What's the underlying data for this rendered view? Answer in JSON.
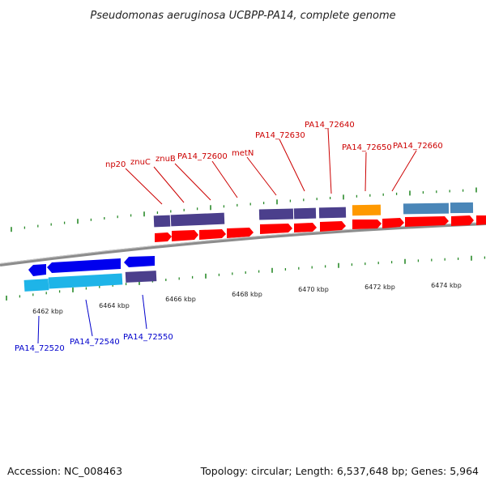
{
  "title": "Pseudomonas aeruginosa UCBPP-PA14, complete genome",
  "footer": {
    "accession": "Accession: NC_008463",
    "topology": "Topology: circular; Length: 6,537,648 bp; Genes: 5,964"
  },
  "colors": {
    "backbone": "#8c8c8c",
    "tick": "#2a8a2a",
    "forward_gene": "#ff0000",
    "forward_purple": "#4b3f8c",
    "orange": "#ff9900",
    "steelblue": "#4a86b8",
    "reverse_gene": "#0000ee",
    "reverse_cyan": "#1eb4e8",
    "label_red": "#cc0000",
    "label_blue": "#0000cc"
  },
  "kbp_ticks": [
    "6462 kbp",
    "6464 kbp",
    "6466 kbp",
    "6468 kbp",
    "6470 kbp",
    "6472 kbp",
    "6474 kbp"
  ],
  "forward_labels": [
    "np20",
    "znuC",
    "znuB",
    "PA14_72600",
    "metN",
    "PA14_72630",
    "PA14_72640",
    "PA14_72650",
    "PA14_72660"
  ],
  "reverse_labels": [
    "PA14_72520",
    "PA14_72540",
    "PA14_72550"
  ]
}
